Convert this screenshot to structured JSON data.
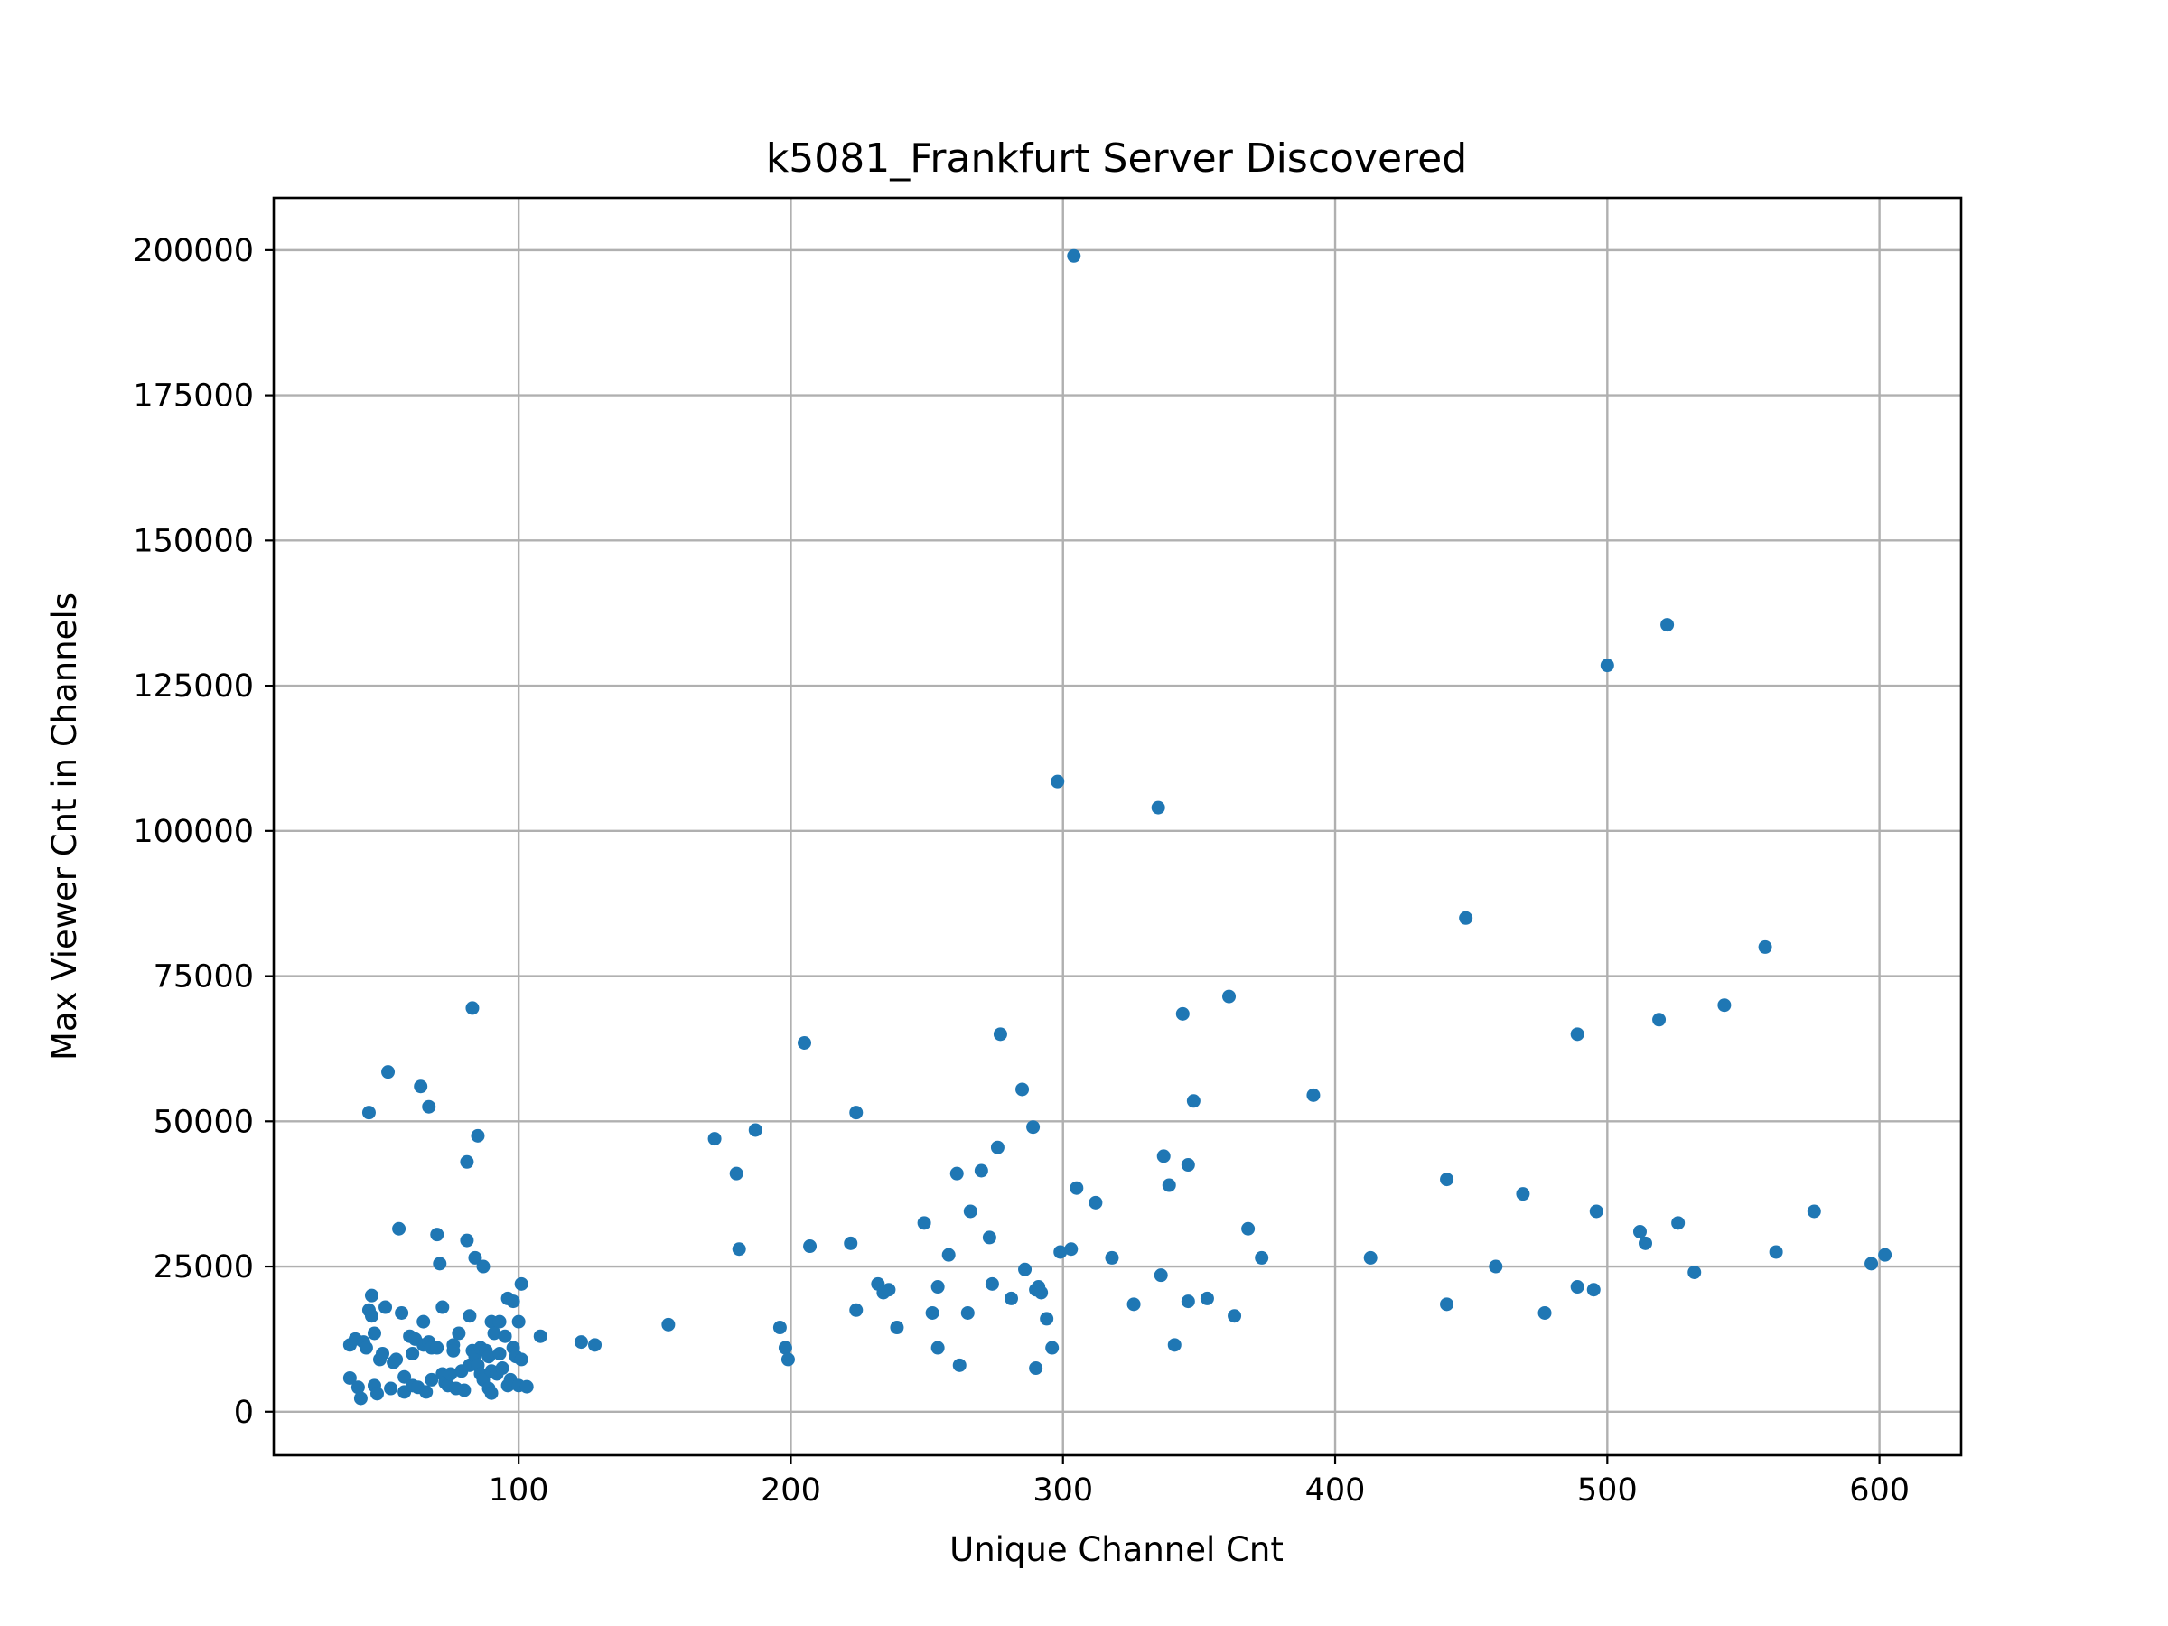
{
  "chart_data": {
    "type": "scatter",
    "title": "k5081_Frankfurt Server Discovered",
    "xlabel": "Unique Channel Cnt",
    "ylabel": "Max Viewer Cnt in Channels",
    "xlim": [
      10,
      630
    ],
    "ylim": [
      -7500,
      209000
    ],
    "x_ticks": [
      100,
      200,
      300,
      400,
      500,
      600
    ],
    "y_ticks": [
      0,
      25000,
      50000,
      75000,
      100000,
      125000,
      150000,
      175000,
      200000
    ],
    "x_tick_labels": [
      "100",
      "200",
      "300",
      "400",
      "500",
      "600"
    ],
    "y_tick_labels": [
      "0",
      "25000",
      "50000",
      "75000",
      "100000",
      "125000",
      "150000",
      "175000",
      "200000"
    ],
    "grid": true,
    "marker_color": "#1f77b4",
    "series": [
      {
        "points": [
          [
            38,
            11500
          ],
          [
            38,
            5800
          ],
          [
            40,
            12500
          ],
          [
            41,
            4200
          ],
          [
            42,
            2300
          ],
          [
            43,
            12000
          ],
          [
            44,
            11000
          ],
          [
            45,
            51500
          ],
          [
            45,
            17500
          ],
          [
            46,
            16500
          ],
          [
            46,
            20000
          ],
          [
            47,
            13500
          ],
          [
            47,
            4500
          ],
          [
            48,
            3100
          ],
          [
            49,
            9000
          ],
          [
            50,
            10000
          ],
          [
            51,
            18000
          ],
          [
            52,
            58500
          ],
          [
            53,
            4000
          ],
          [
            54,
            8500
          ],
          [
            55,
            9000
          ],
          [
            56,
            31500
          ],
          [
            57,
            17000
          ],
          [
            58,
            6000
          ],
          [
            58,
            3400
          ],
          [
            60,
            13000
          ],
          [
            61,
            4500
          ],
          [
            61,
            10000
          ],
          [
            62,
            12500
          ],
          [
            63,
            4200
          ],
          [
            64,
            56000
          ],
          [
            65,
            15500
          ],
          [
            65,
            11500
          ],
          [
            66,
            3400
          ],
          [
            67,
            52500
          ],
          [
            67,
            12000
          ],
          [
            68,
            5500
          ],
          [
            68,
            11000
          ],
          [
            70,
            30500
          ],
          [
            70,
            11000
          ],
          [
            71,
            25500
          ],
          [
            72,
            18000
          ],
          [
            72,
            6500
          ],
          [
            73,
            5000
          ],
          [
            74,
            4500
          ],
          [
            75,
            6500
          ],
          [
            76,
            11500
          ],
          [
            76,
            10500
          ],
          [
            77,
            4000
          ],
          [
            78,
            13500
          ],
          [
            79,
            7000
          ],
          [
            80,
            3700
          ],
          [
            81,
            43000
          ],
          [
            81,
            29500
          ],
          [
            82,
            16500
          ],
          [
            82,
            8000
          ],
          [
            83,
            69500
          ],
          [
            83,
            10500
          ],
          [
            84,
            26500
          ],
          [
            84,
            9500
          ],
          [
            85,
            8000
          ],
          [
            85,
            47500
          ],
          [
            86,
            6500
          ],
          [
            86,
            11000
          ],
          [
            87,
            25000
          ],
          [
            87,
            5500
          ],
          [
            88,
            10500
          ],
          [
            89,
            9500
          ],
          [
            89,
            4000
          ],
          [
            90,
            15500
          ],
          [
            90,
            3200
          ],
          [
            90,
            7000
          ],
          [
            91,
            13500
          ],
          [
            92,
            6500
          ],
          [
            93,
            15500
          ],
          [
            93,
            10000
          ],
          [
            94,
            7500
          ],
          [
            95,
            13000
          ],
          [
            96,
            19500
          ],
          [
            96,
            4500
          ],
          [
            97,
            5500
          ],
          [
            98,
            19000
          ],
          [
            98,
            11000
          ],
          [
            99,
            9500
          ],
          [
            100,
            15500
          ],
          [
            100,
            4500
          ],
          [
            101,
            22000
          ],
          [
            101,
            9000
          ],
          [
            103,
            4300
          ],
          [
            108,
            13000
          ],
          [
            123,
            12000
          ],
          [
            128,
            11500
          ],
          [
            155,
            15000
          ],
          [
            172,
            47000
          ],
          [
            180,
            41000
          ],
          [
            181,
            28000
          ],
          [
            187,
            48500
          ],
          [
            196,
            14500
          ],
          [
            198,
            11000
          ],
          [
            199,
            9000
          ],
          [
            205,
            63500
          ],
          [
            207,
            28500
          ],
          [
            222,
            29000
          ],
          [
            224,
            51500
          ],
          [
            224,
            17500
          ],
          [
            232,
            22000
          ],
          [
            234,
            20500
          ],
          [
            236,
            21000
          ],
          [
            239,
            14500
          ],
          [
            249,
            32500
          ],
          [
            252,
            17000
          ],
          [
            254,
            11000
          ],
          [
            254,
            21500
          ],
          [
            258,
            27000
          ],
          [
            261,
            41000
          ],
          [
            262,
            8000
          ],
          [
            265,
            17000
          ],
          [
            266,
            34500
          ],
          [
            270,
            41500
          ],
          [
            273,
            30000
          ],
          [
            274,
            22000
          ],
          [
            276,
            45500
          ],
          [
            277,
            65000
          ],
          [
            281,
            19500
          ],
          [
            285,
            55500
          ],
          [
            286,
            24500
          ],
          [
            289,
            49000
          ],
          [
            290,
            7500
          ],
          [
            290,
            21000
          ],
          [
            291,
            21500
          ],
          [
            292,
            20500
          ],
          [
            294,
            16000
          ],
          [
            296,
            11000
          ],
          [
            299,
            27500
          ],
          [
            303,
            28000
          ],
          [
            304,
            199000
          ],
          [
            298,
            108500
          ],
          [
            305,
            38500
          ],
          [
            312,
            36000
          ],
          [
            318,
            26500
          ],
          [
            326,
            18500
          ],
          [
            335,
            104000
          ],
          [
            336,
            23500
          ],
          [
            337,
            44000
          ],
          [
            339,
            39000
          ],
          [
            341,
            11500
          ],
          [
            344,
            68500
          ],
          [
            346,
            19000
          ],
          [
            346,
            42500
          ],
          [
            348,
            53500
          ],
          [
            353,
            19500
          ],
          [
            361,
            71500
          ],
          [
            363,
            16500
          ],
          [
            368,
            31500
          ],
          [
            373,
            26500
          ],
          [
            392,
            54500
          ],
          [
            413,
            26500
          ],
          [
            441,
            40000
          ],
          [
            441,
            18500
          ],
          [
            448,
            85000
          ],
          [
            459,
            25000
          ],
          [
            469,
            37500
          ],
          [
            477,
            17000
          ],
          [
            489,
            65000
          ],
          [
            489,
            21500
          ],
          [
            495,
            21000
          ],
          [
            496,
            34500
          ],
          [
            500,
            128500
          ],
          [
            512,
            31000
          ],
          [
            514,
            29000
          ],
          [
            519,
            67500
          ],
          [
            522,
            135500
          ],
          [
            526,
            32500
          ],
          [
            532,
            24000
          ],
          [
            543,
            70000
          ],
          [
            558,
            80000
          ],
          [
            562,
            27500
          ],
          [
            576,
            34500
          ],
          [
            597,
            25500
          ],
          [
            602,
            27000
          ]
        ]
      }
    ]
  }
}
